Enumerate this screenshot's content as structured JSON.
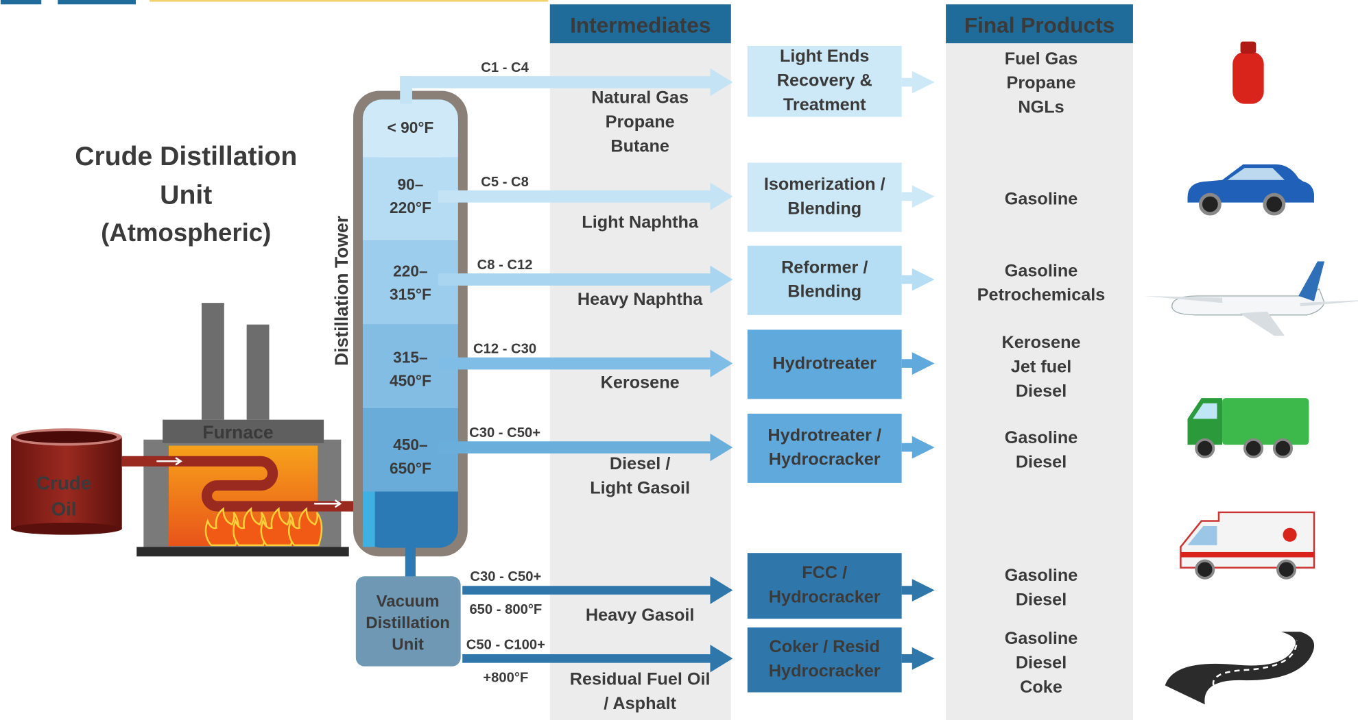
{
  "title": [
    "Crude Distillation",
    "Unit"
  ],
  "subtitle": "(Atmospheric)",
  "tower_label": "Distillation Tower",
  "furnace_label": "Furnace",
  "crude_oil": [
    "Crude",
    "Oil"
  ],
  "vacuum_unit": [
    "Vacuum",
    "Distillation",
    "Unit"
  ],
  "headers": {
    "intermediates": "Intermediates",
    "final_products": "Final Products"
  },
  "streams": [
    {
      "temperature": [
        "< 90°F"
      ],
      "carbon": "C1 - C4",
      "intermediate": [
        "Natural Gas",
        "Propane",
        "Butane"
      ],
      "process": [
        "Light Ends",
        "Recovery &",
        "Treatment"
      ],
      "products": [
        "Fuel Gas",
        "Propane",
        "NGLs"
      ]
    },
    {
      "temperature": [
        "90–",
        "220°F"
      ],
      "carbon": "C5 - C8",
      "intermediate": [
        "Light Naphtha"
      ],
      "process": [
        "Isomerization /",
        "Blending"
      ],
      "products": [
        "Gasoline"
      ]
    },
    {
      "temperature": [
        "220–",
        "315°F"
      ],
      "carbon": "C8 - C12",
      "intermediate": [
        "Heavy Naphtha"
      ],
      "process": [
        "Reformer /",
        "Blending"
      ],
      "products": [
        "Gasoline",
        "Petrochemicals"
      ]
    },
    {
      "temperature": [
        "315–",
        "450°F"
      ],
      "carbon": "C12 - C30",
      "intermediate": [
        "Kerosene"
      ],
      "process": [
        "Hydrotreater"
      ],
      "products": [
        "Kerosene",
        "Jet fuel",
        "Diesel"
      ]
    },
    {
      "temperature": [
        "450–",
        "650°F"
      ],
      "carbon": "C30 - C50+",
      "intermediate": [
        "Diesel /",
        "Light Gasoil"
      ],
      "process": [
        "Hydrotreater /",
        "Hydrocracker"
      ],
      "products": [
        "Gasoline",
        "Diesel"
      ]
    },
    {
      "temperature": [
        "650 - 800°F"
      ],
      "carbon": "C30 - C50+",
      "intermediate": [
        "Heavy Gasoil"
      ],
      "process": [
        "FCC /",
        "Hydrocracker"
      ],
      "products": [
        "Gasoline",
        "Diesel"
      ]
    },
    {
      "temperature": [
        "+800°F"
      ],
      "carbon": "C50 - C100+",
      "intermediate": [
        "Residual Fuel Oil",
        "/ Asphalt"
      ],
      "process": [
        "Coker / Resid",
        "Hydrocracker"
      ],
      "products": [
        "Gasoline",
        "Diesel",
        "Coke"
      ]
    }
  ]
}
